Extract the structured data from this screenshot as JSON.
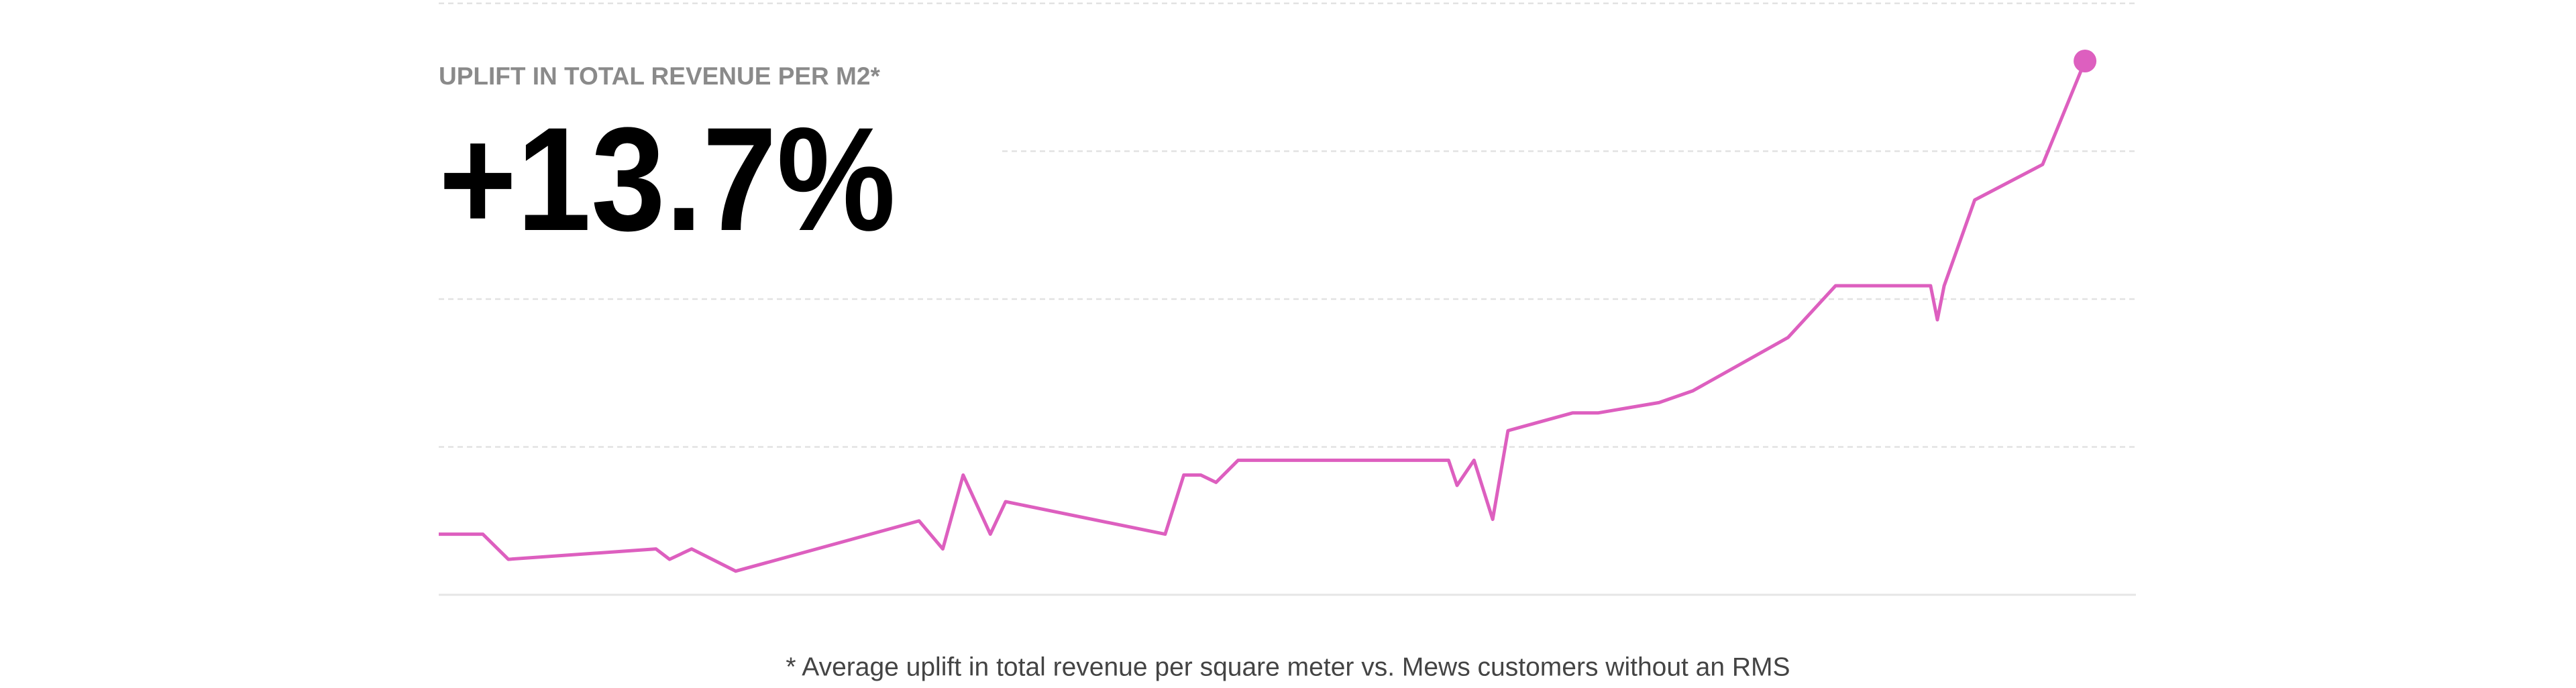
{
  "chart_data": {
    "type": "line",
    "subtitle": "UPLIFT IN TOTAL REVENUE PER M2*",
    "title": "+13.7%",
    "annotation": "* Average uplift in total revenue per square meter vs. Mews customers without an RMS",
    "x": [
      0,
      2.6,
      4.1,
      12.8,
      13.6,
      14.9,
      17.5,
      28.3,
      29.7,
      30.9,
      32.5,
      33.4,
      42.8,
      43.9,
      44.9,
      45.8,
      47.1,
      59.5,
      60.0,
      61.0,
      62.1,
      63.0,
      66.8,
      68.3,
      71.9,
      73.9,
      79.5,
      82.3,
      87.9,
      88.3,
      88.7,
      90.5,
      94.5,
      97.0
    ],
    "series": [
      {
        "color": "#dd5fbf",
        "values": [
          0.41,
          0.41,
          0.24,
          0.31,
          0.24,
          0.31,
          0.16,
          0.5,
          0.31,
          0.81,
          0.41,
          0.63,
          0.41,
          0.81,
          0.81,
          0.76,
          0.91,
          0.91,
          0.74,
          0.91,
          0.51,
          1.11,
          1.23,
          1.23,
          1.3,
          1.38,
          1.74,
          2.09,
          2.09,
          1.86,
          2.09,
          2.67,
          2.91,
          3.61
        ]
      }
    ],
    "xlim": [
      0,
      100
    ],
    "ylim": [
      0,
      4
    ],
    "yticks": [
      0,
      1,
      2,
      3,
      4
    ],
    "grid": true
  }
}
